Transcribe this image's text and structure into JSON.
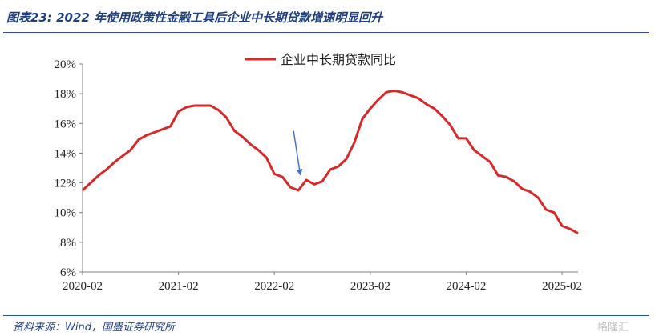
{
  "figure_title": "图表23:  2022 年使用政策性金融工具后企业中长期贷款增速明显回升",
  "source_text": "资料来源：Wind，国盛证券研究所",
  "watermark": "格隆汇",
  "colors": {
    "series": "#d42a2a",
    "arrow": "#4472c4",
    "title": "#1f3f7a",
    "rule": "#2e5395",
    "axis": "#7f7f7f"
  },
  "chart_data": {
    "type": "line",
    "ylim": [
      6,
      20
    ],
    "yticks": [
      6,
      8,
      10,
      12,
      14,
      16,
      18,
      20
    ],
    "ytick_labels": [
      "6%",
      "8%",
      "10%",
      "12%",
      "14%",
      "16%",
      "18%",
      "20%"
    ],
    "xticks": [
      "2020-02",
      "2021-02",
      "2022-02",
      "2023-02",
      "2024-02",
      "2025-02"
    ],
    "grid": false,
    "legend_position": "top",
    "series": [
      {
        "name": "企业中长期贷款同比",
        "x": [
          "2020-02",
          "2020-03",
          "2020-04",
          "2020-05",
          "2020-06",
          "2020-07",
          "2020-08",
          "2020-09",
          "2020-10",
          "2020-11",
          "2020-12",
          "2021-01",
          "2021-02",
          "2021-03",
          "2021-04",
          "2021-05",
          "2021-06",
          "2021-07",
          "2021-08",
          "2021-09",
          "2021-10",
          "2021-11",
          "2021-12",
          "2022-01",
          "2022-02",
          "2022-03",
          "2022-04",
          "2022-05",
          "2022-06",
          "2022-07",
          "2022-08",
          "2022-09",
          "2022-10",
          "2022-11",
          "2022-12",
          "2023-01",
          "2023-02",
          "2023-03",
          "2023-04",
          "2023-05",
          "2023-06",
          "2023-07",
          "2023-08",
          "2023-09",
          "2023-10",
          "2023-11",
          "2023-12",
          "2024-01",
          "2024-02",
          "2024-03",
          "2024-04",
          "2024-05",
          "2024-06",
          "2024-07",
          "2024-08",
          "2024-09",
          "2024-10",
          "2024-11",
          "2024-12",
          "2025-01",
          "2025-02",
          "2025-03",
          "2025-04"
        ],
        "values": [
          11.5,
          12.0,
          12.5,
          12.9,
          13.4,
          13.8,
          14.2,
          14.9,
          15.2,
          15.4,
          15.6,
          15.8,
          16.8,
          17.1,
          17.2,
          17.2,
          17.2,
          16.9,
          16.4,
          15.5,
          15.1,
          14.6,
          14.2,
          13.7,
          12.6,
          12.4,
          11.7,
          11.5,
          12.2,
          11.9,
          12.1,
          12.9,
          13.1,
          13.6,
          14.7,
          16.3,
          17.0,
          17.6,
          18.1,
          18.2,
          18.1,
          17.9,
          17.7,
          17.3,
          17.0,
          16.5,
          15.9,
          15.0,
          15.0,
          14.2,
          13.8,
          13.4,
          12.5,
          12.4,
          12.1,
          11.6,
          11.4,
          11.0,
          10.2,
          10.0,
          9.1,
          8.9,
          8.6
        ]
      }
    ],
    "annotation": {
      "type": "arrow",
      "from": [
        "2022-04",
        15.5
      ],
      "to": [
        "2022-05",
        12.7
      ]
    }
  }
}
